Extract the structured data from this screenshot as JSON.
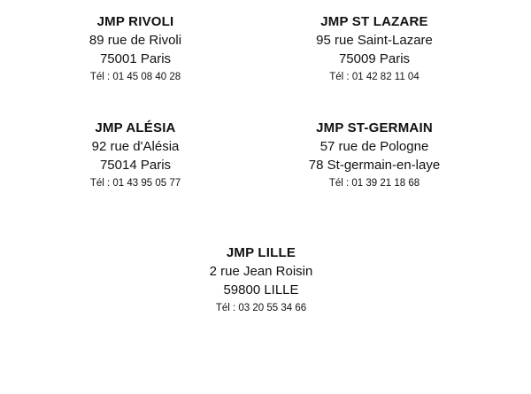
{
  "stores": [
    {
      "name": "JMP RIVOLI",
      "street": "89 rue de Rivoli",
      "city": "75001 Paris",
      "phone": "Tél : 01 45 08 40 28"
    },
    {
      "name": "JMP ST LAZARE",
      "street": "95 rue Saint-Lazare",
      "city": "75009 Paris",
      "phone": "Tél : 01 42 82 11 04"
    },
    {
      "name": "JMP ALÉSIA",
      "street": "92 rue d'Alésia",
      "city": "75014 Paris",
      "phone": "Tél : 01 43 95 05 77"
    },
    {
      "name": "JMP ST-GERMAIN",
      "street": "57 rue de Pologne",
      "city": "78 St-germain-en-laye",
      "phone": "Tél : 01 39 21 18 68"
    },
    {
      "name": "JMP LILLE",
      "street": "2 rue Jean Roisin",
      "city": "59800 LILLE",
      "phone": "Tél : 03 20 55 34 66"
    }
  ]
}
